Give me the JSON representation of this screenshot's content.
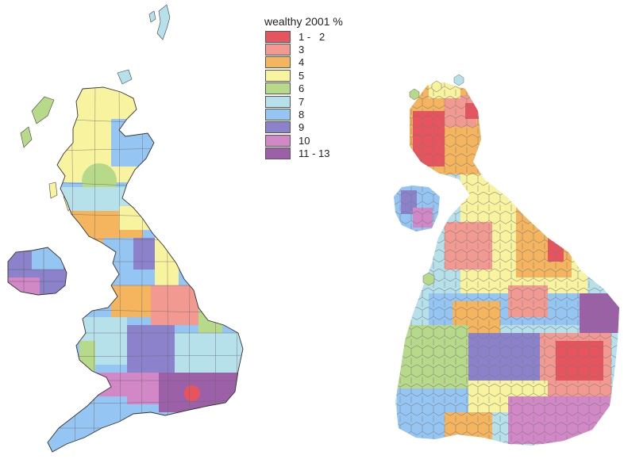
{
  "legend": {
    "title": "wealthy 2001 %",
    "classes": [
      {
        "label": "1 -   2",
        "color": "#e8545e"
      },
      {
        "label": "3",
        "color": "#f29a92"
      },
      {
        "label": "4",
        "color": "#f5b45e"
      },
      {
        "label": "5",
        "color": "#f8f39f"
      },
      {
        "label": "6",
        "color": "#b7d98a"
      },
      {
        "label": "7",
        "color": "#b6e0ea"
      },
      {
        "label": "8",
        "color": "#95c5f2"
      },
      {
        "label": "9",
        "color": "#8c82cc"
      },
      {
        "label": "10",
        "color": "#d287c7"
      },
      {
        "label": "11 - 13",
        "color": "#9c60a8"
      }
    ]
  },
  "maps": [
    {
      "type": "geographic-choropleth",
      "region": "Great Britain and Northern Ireland"
    },
    {
      "type": "hexagon-cartogram",
      "region": "Great Britain and Northern Ireland"
    }
  ]
}
